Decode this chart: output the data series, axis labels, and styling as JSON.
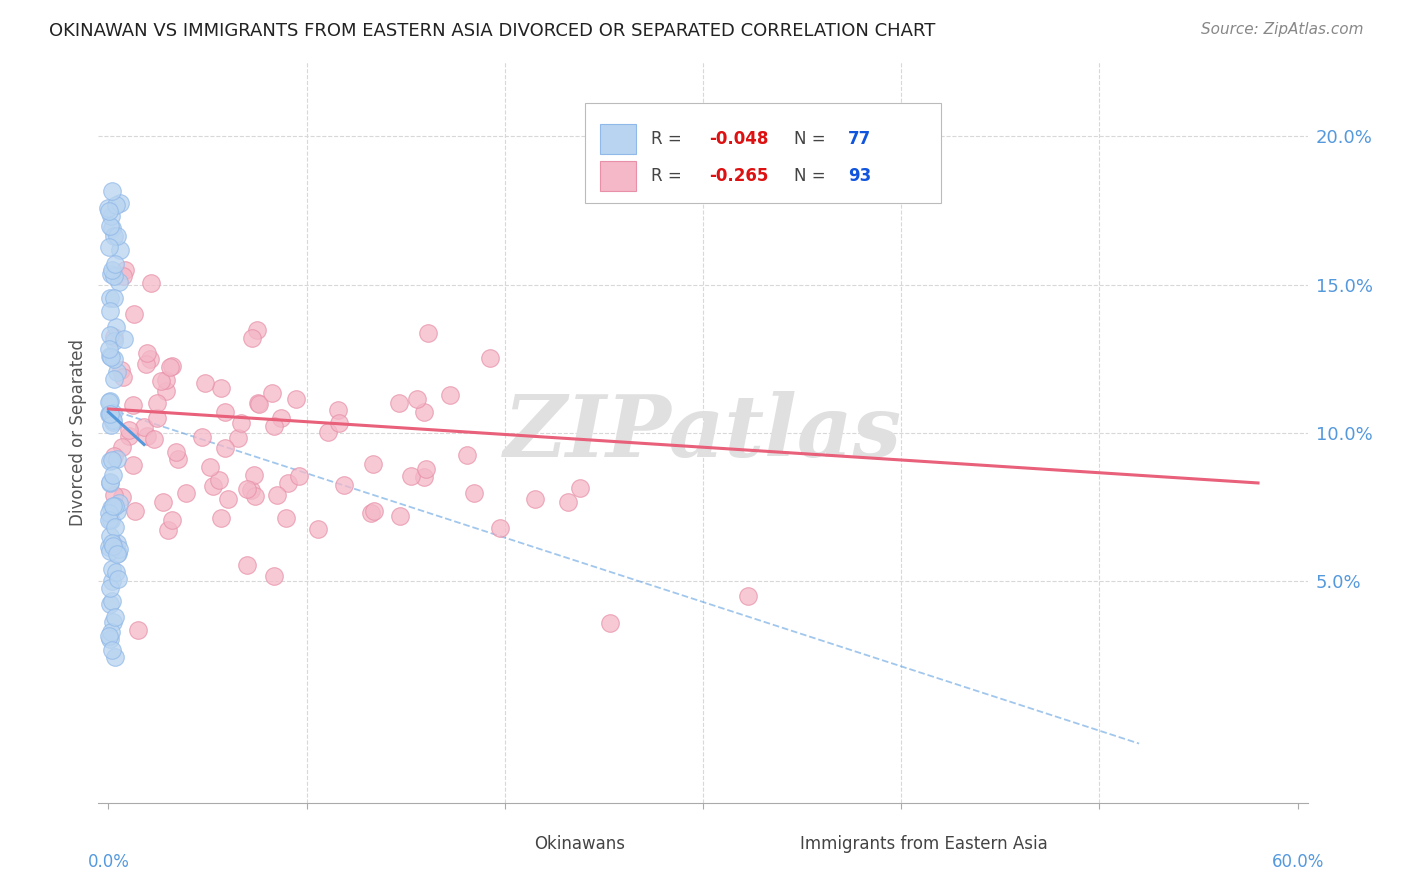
{
  "title": "OKINAWAN VS IMMIGRANTS FROM EASTERN ASIA DIVORCED OR SEPARATED CORRELATION CHART",
  "source": "Source: ZipAtlas.com",
  "ylabel": "Divorced or Separated",
  "ytick_labels": [
    "5.0%",
    "10.0%",
    "15.0%",
    "20.0%"
  ],
  "ytick_values": [
    0.05,
    0.1,
    0.15,
    0.2
  ],
  "xlim": [
    -0.005,
    0.605
  ],
  "ylim": [
    -0.025,
    0.225
  ],
  "series1_color": "#b8d4f0",
  "series1_edge": "#90b8e8",
  "series1_line_color": "#5599dd",
  "series2_color": "#f4b8c8",
  "series2_edge": "#e890a8",
  "series2_line_color": "#e8607a",
  "background_color": "#ffffff",
  "grid_color": "#d8d8d8",
  "title_color": "#222222",
  "watermark_text": "ZIPatlas",
  "watermark_color": "#e0e0e0",
  "r1": "-0.048",
  "n1": "77",
  "r2": "-0.265",
  "n2": "93",
  "legend_text_color": "#444444",
  "legend_r_color": "#dd1111",
  "legend_n_color": "#1155dd",
  "right_axis_color": "#5599dd",
  "source_color": "#888888"
}
